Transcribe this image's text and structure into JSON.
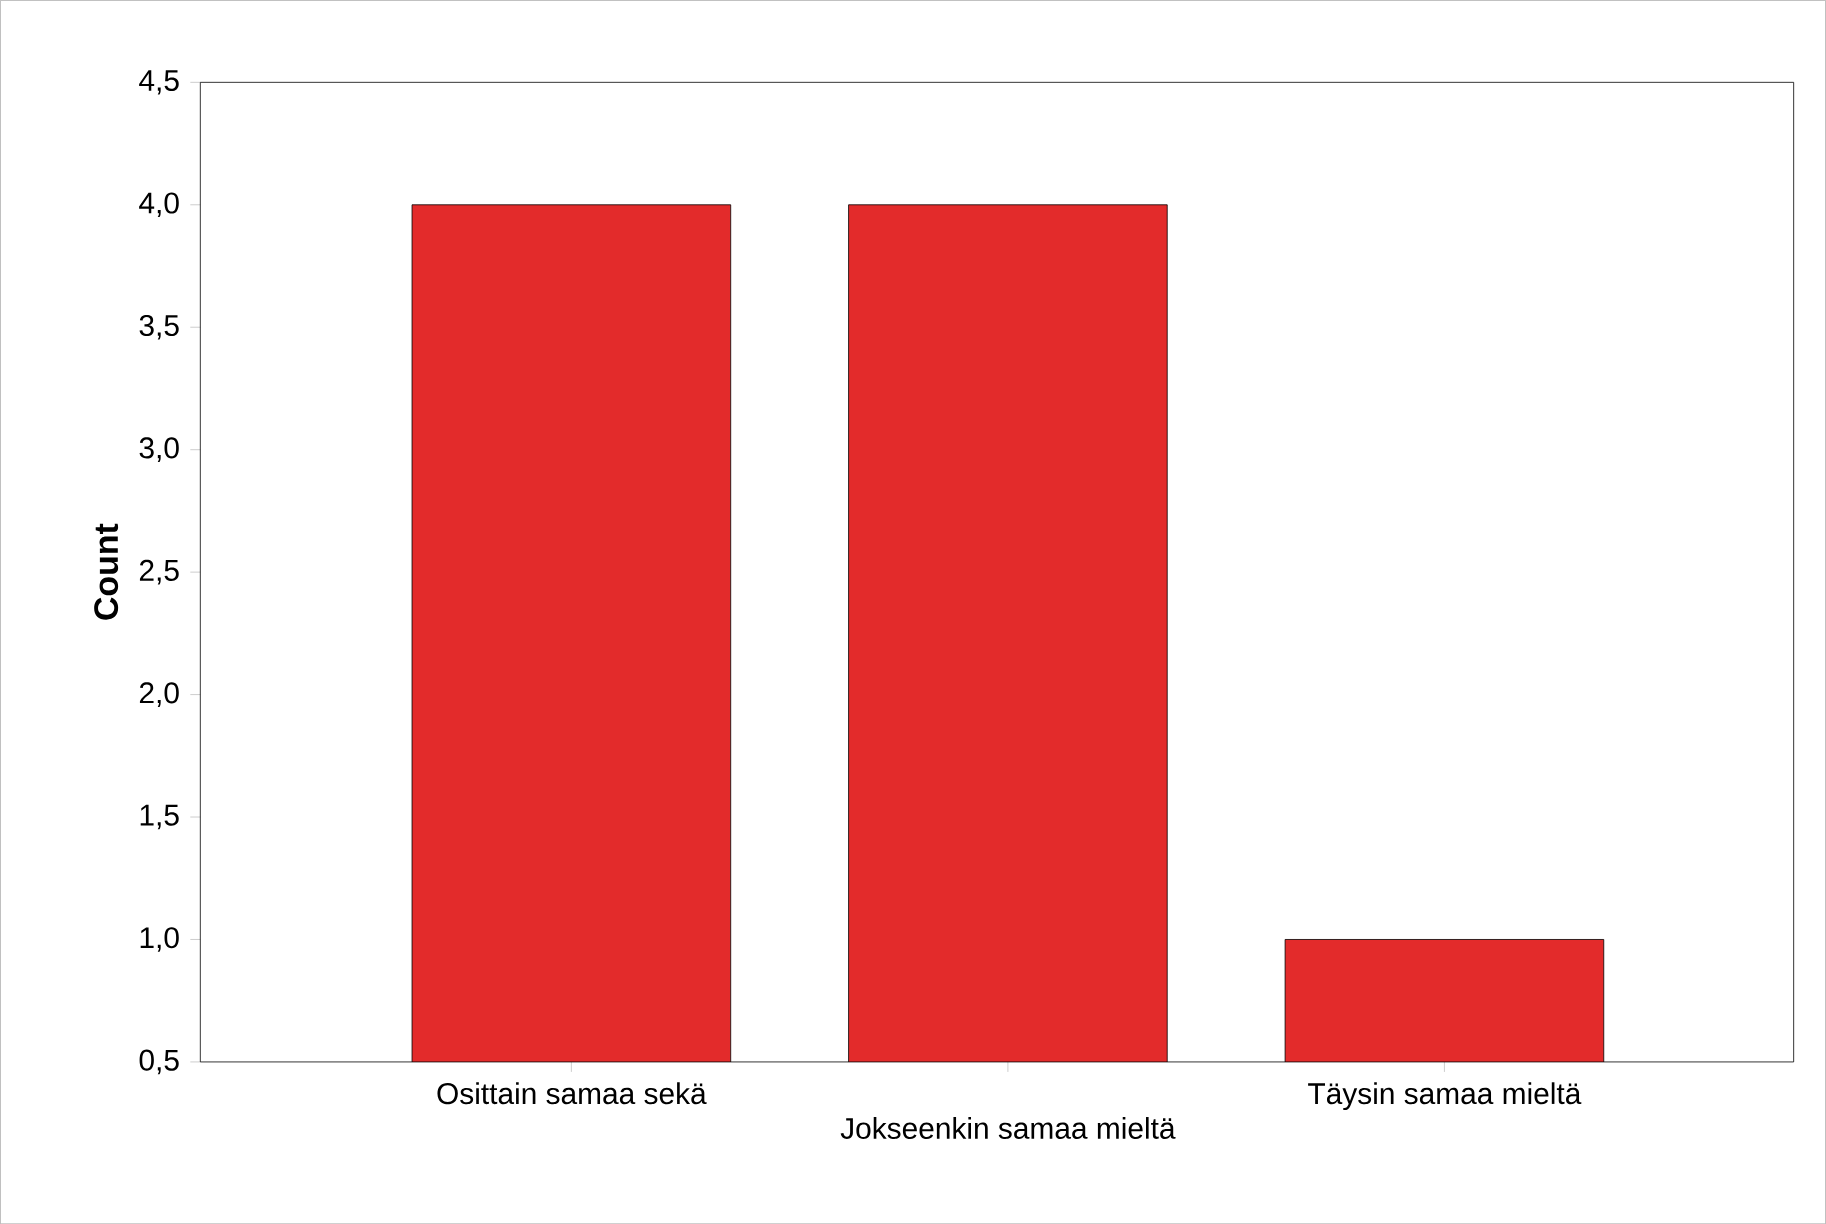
{
  "chart_data": {
    "type": "bar",
    "ylabel": "Count",
    "categories": [
      "Osittain samaa sekä",
      "Jokseenkin samaa mieltä",
      "Täysin samaa mieltä"
    ],
    "values": [
      4,
      4,
      1
    ],
    "color": "#e32b2b",
    "ylim": [
      0.5,
      4.5
    ],
    "yticks": [
      {
        "value": 0.5,
        "label": "0,5"
      },
      {
        "value": 1.0,
        "label": "1,0"
      },
      {
        "value": 1.5,
        "label": "1,5"
      },
      {
        "value": 2.0,
        "label": "2,0"
      },
      {
        "value": 2.5,
        "label": "2,5"
      },
      {
        "value": 3.0,
        "label": "3,0"
      },
      {
        "value": 3.5,
        "label": "3,5"
      },
      {
        "value": 4.0,
        "label": "4,0"
      },
      {
        "value": 4.5,
        "label": "4,5"
      }
    ],
    "grid": false
  }
}
